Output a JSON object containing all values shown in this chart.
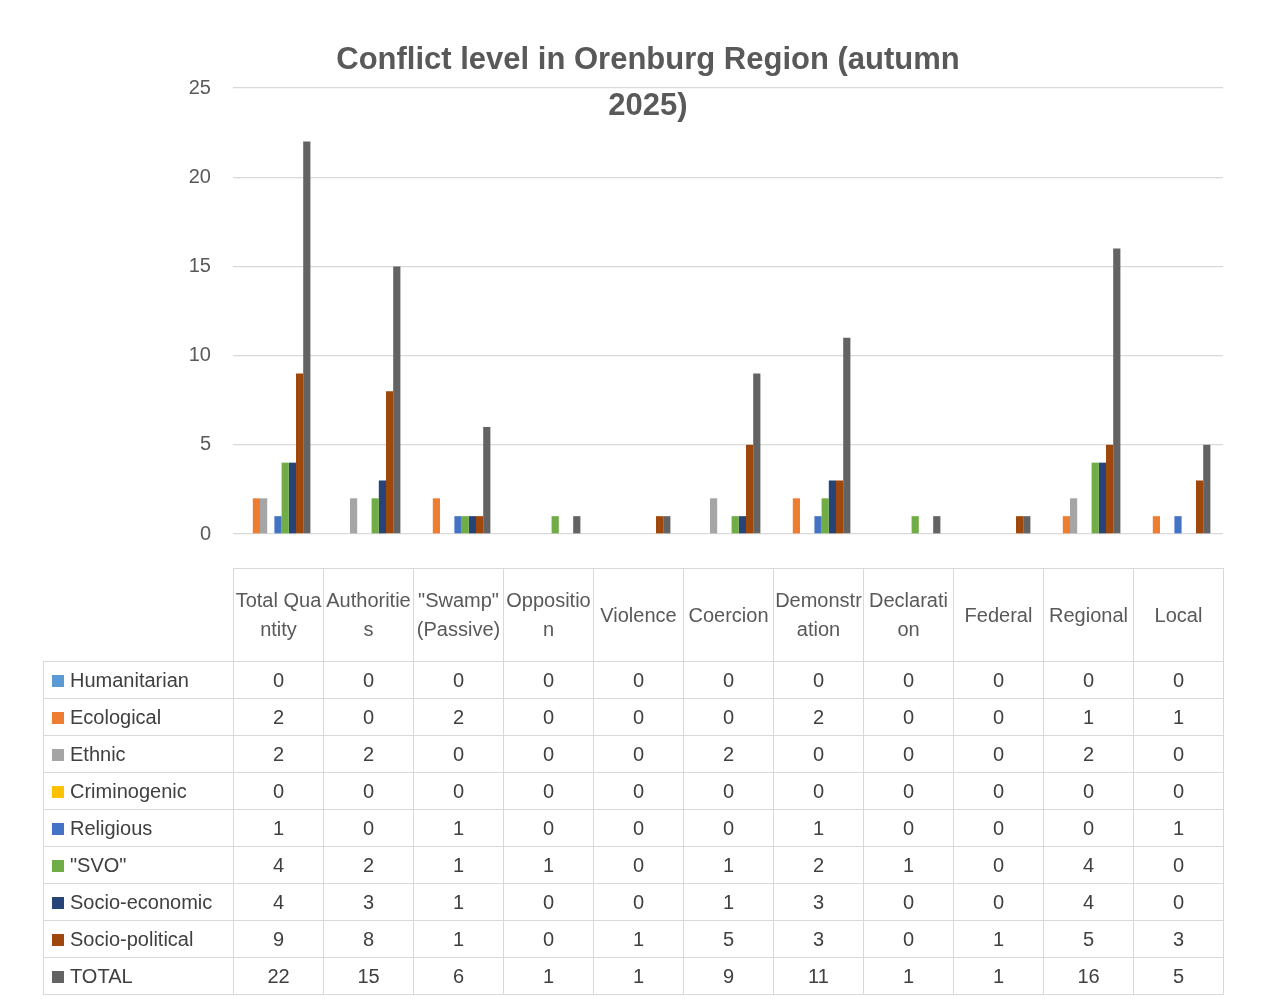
{
  "chart_data": {
    "type": "bar",
    "title": "Conflict level in Orenburg Region (autumn 2025)",
    "categories": [
      "Total Quantity",
      "Authorities",
      "\"Swamp\" (Passive)",
      "Opposition",
      "Violence",
      "Coercion",
      "Demonstration",
      "Declaration",
      "Federal",
      "Regional",
      "Local"
    ],
    "series": [
      {
        "name": "Humanitarian",
        "color": "#5b9bd5",
        "values": [
          0,
          0,
          0,
          0,
          0,
          0,
          0,
          0,
          0,
          0,
          0
        ]
      },
      {
        "name": "Ecological",
        "color": "#ed7d31",
        "values": [
          2,
          0,
          2,
          0,
          0,
          0,
          2,
          0,
          0,
          1,
          1
        ]
      },
      {
        "name": "Ethnic",
        "color": "#a5a5a5",
        "values": [
          2,
          2,
          0,
          0,
          0,
          2,
          0,
          0,
          0,
          2,
          0
        ]
      },
      {
        "name": "Criminogenic",
        "color": "#ffc000",
        "values": [
          0,
          0,
          0,
          0,
          0,
          0,
          0,
          0,
          0,
          0,
          0
        ]
      },
      {
        "name": "Religious",
        "color": "#4472c4",
        "values": [
          1,
          0,
          1,
          0,
          0,
          0,
          1,
          0,
          0,
          0,
          1
        ]
      },
      {
        "name": "\"SVO\"",
        "color": "#70ad47",
        "values": [
          4,
          2,
          1,
          1,
          0,
          1,
          2,
          1,
          0,
          4,
          0
        ]
      },
      {
        "name": "Socio-economic",
        "color": "#264478",
        "values": [
          4,
          3,
          1,
          0,
          0,
          1,
          3,
          0,
          0,
          4,
          0
        ]
      },
      {
        "name": "Socio-political",
        "color": "#9e480e",
        "values": [
          9,
          8,
          1,
          0,
          1,
          5,
          3,
          0,
          1,
          5,
          3
        ]
      },
      {
        "name": "TOTAL",
        "color": "#636363",
        "values": [
          22,
          15,
          6,
          1,
          1,
          9,
          11,
          1,
          1,
          16,
          5
        ]
      }
    ],
    "ylim": [
      0,
      25
    ],
    "yticks": [
      0,
      5,
      10,
      15,
      20,
      25
    ],
    "grid": "y",
    "legend": "bottom",
    "data_labels": true
  }
}
